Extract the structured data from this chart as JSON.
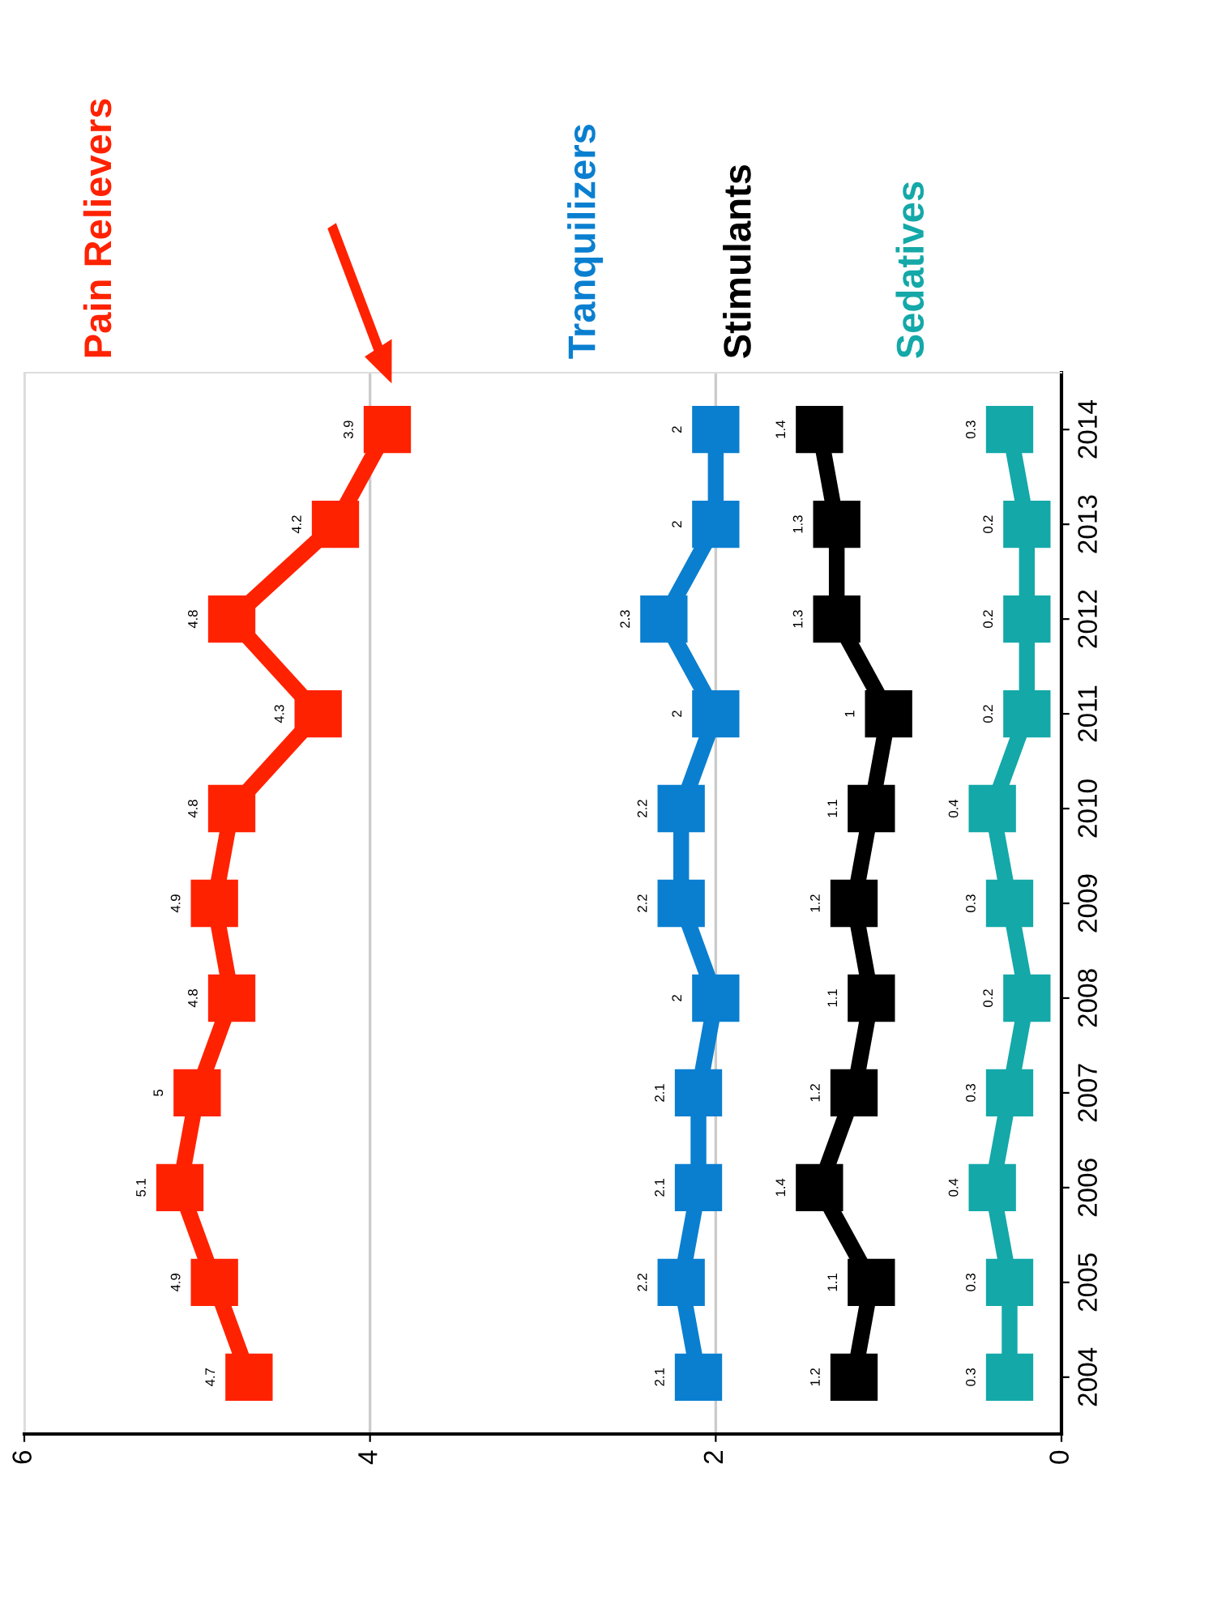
{
  "chart_data": {
    "type": "line",
    "orientation": "horizontal",
    "categories": [
      "2014",
      "2013",
      "2012",
      "2011",
      "2010",
      "2009",
      "2008",
      "2007",
      "2006",
      "2005",
      "2004"
    ],
    "series": [
      {
        "name": "Pain Relievers",
        "color": "#ff2200",
        "values": [
          3.9,
          4.2,
          4.8,
          4.3,
          4.8,
          4.9,
          4.8,
          5,
          5.1,
          4.9,
          4.7
        ]
      },
      {
        "name": "Tranquilizers",
        "color": "#0a7fd0",
        "values": [
          2,
          2,
          2.3,
          2,
          2.2,
          2.2,
          2,
          2.1,
          2.1,
          2.2,
          2.1
        ]
      },
      {
        "name": "Stimulants",
        "color": "#000000",
        "values": [
          1.4,
          1.3,
          1.3,
          1,
          1.1,
          1.2,
          1.1,
          1.2,
          1.4,
          1.1,
          1.2
        ]
      },
      {
        "name": "Sedatives",
        "color": "#14a8a8",
        "values": [
          0.3,
          0.2,
          0.2,
          0.2,
          0.4,
          0.3,
          0.2,
          0.3,
          0.4,
          0.3,
          0.3
        ]
      }
    ],
    "xlim": [
      6,
      0
    ],
    "xticks": [
      0,
      2,
      4,
      6
    ],
    "grid": "x",
    "marker": "square",
    "line_style": "solid",
    "data_labels": true,
    "legend": false
  }
}
